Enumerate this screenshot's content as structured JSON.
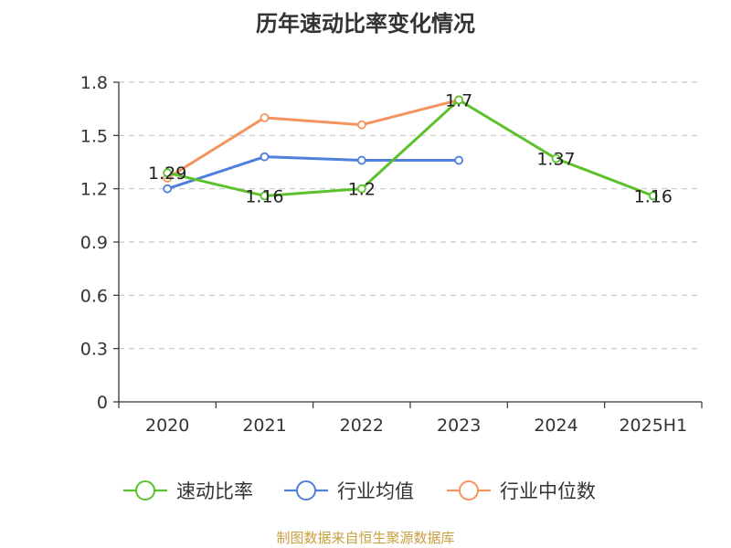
{
  "chart_data": {
    "type": "line",
    "title": "历年速动比率变化情况",
    "categories": [
      "2020",
      "2021",
      "2022",
      "2023",
      "2024",
      "2025H1"
    ],
    "ylim": [
      0,
      1.8
    ],
    "yticks": [
      "0",
      "0.3",
      "0.6",
      "0.9",
      "1.2",
      "1.5",
      "1.8"
    ],
    "grid": true,
    "legend_position": "bottom",
    "series": [
      {
        "name": "速动比率",
        "color": "#5cc12c",
        "values": [
          1.29,
          1.16,
          1.2,
          1.7,
          1.37,
          1.16
        ],
        "labels": [
          "1.29",
          "1.16",
          "1.2",
          "1.7",
          "1.37",
          "1.16"
        ]
      },
      {
        "name": "行业均值",
        "color": "#4f7fdc",
        "values": [
          1.2,
          1.38,
          1.36,
          1.36,
          null,
          null
        ]
      },
      {
        "name": "行业中位数",
        "color": "#f5935e",
        "values": [
          1.26,
          1.6,
          1.56,
          1.7,
          null,
          null
        ]
      }
    ]
  },
  "footer": {
    "source": "制图数据来自恒生聚源数据库"
  }
}
